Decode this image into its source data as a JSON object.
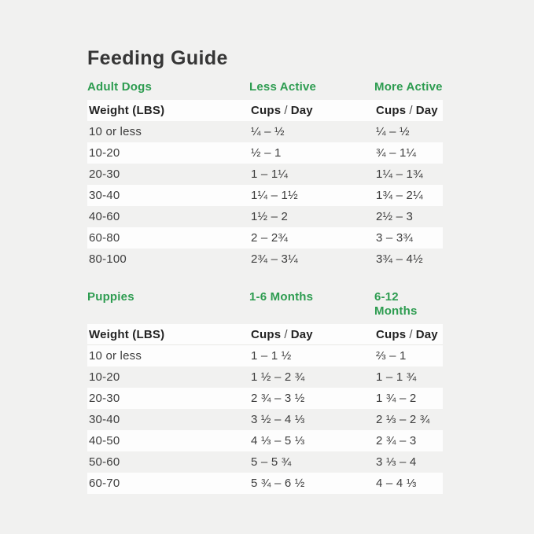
{
  "title": "Feeding Guide",
  "colors": {
    "page_background": "#f1f1f0",
    "row_stripe": "#fdfdfd",
    "accent_green": "#2d9c50",
    "title_text": "#363636",
    "body_text": "#3d3d3d"
  },
  "labels": {
    "weight": "Weight (LBS)",
    "cups": "Cups",
    "slash": "/",
    "day": "Day"
  },
  "adult": {
    "section_label": "Adult Dogs",
    "col2_label": "Less Active",
    "col3_label": "More Active",
    "rows": [
      {
        "weight": "10 or less",
        "less": "¼ – ½",
        "more": "¼ – ½"
      },
      {
        "weight": "10-20",
        "less": "½ – 1",
        "more": "¾ – 1¼"
      },
      {
        "weight": "20-30",
        "less": "1 – 1¼",
        "more": "1¼ – 1¾"
      },
      {
        "weight": "30-40",
        "less": "1¼ – 1½",
        "more": "1¾ – 2¼"
      },
      {
        "weight": "40-60",
        "less": "1½ – 2",
        "more": "2½ – 3"
      },
      {
        "weight": "60-80",
        "less": "2 – 2¾",
        "more": "3 – 3¾"
      },
      {
        "weight": "80-100",
        "less": "2¾ – 3¼",
        "more": "3¾ – 4½"
      }
    ]
  },
  "puppies": {
    "section_label": "Puppies",
    "col2_label": "1-6 Months",
    "col3_label": "6-12 Months",
    "rows": [
      {
        "weight": "10 or less",
        "m1to6": "1 – 1 ½",
        "m6to12": "⅔ – 1"
      },
      {
        "weight": "10-20",
        "m1to6": "1 ½ – 2 ¾",
        "m6to12": "1 – 1 ¾"
      },
      {
        "weight": "20-30",
        "m1to6": "2 ¾ – 3 ½",
        "m6to12": "1 ¾ – 2"
      },
      {
        "weight": "30-40",
        "m1to6": "3 ½ – 4 ⅓",
        "m6to12": "2 ⅓ – 2 ¾"
      },
      {
        "weight": "40-50",
        "m1to6": "4 ⅓ – 5 ⅓",
        "m6to12": "2 ¾ – 3"
      },
      {
        "weight": "50-60",
        "m1to6": "5 – 5 ¾",
        "m6to12": "3 ⅓ – 4"
      },
      {
        "weight": "60-70",
        "m1to6": "5 ¾ – 6 ½",
        "m6to12": "4 – 4 ⅓"
      }
    ]
  }
}
